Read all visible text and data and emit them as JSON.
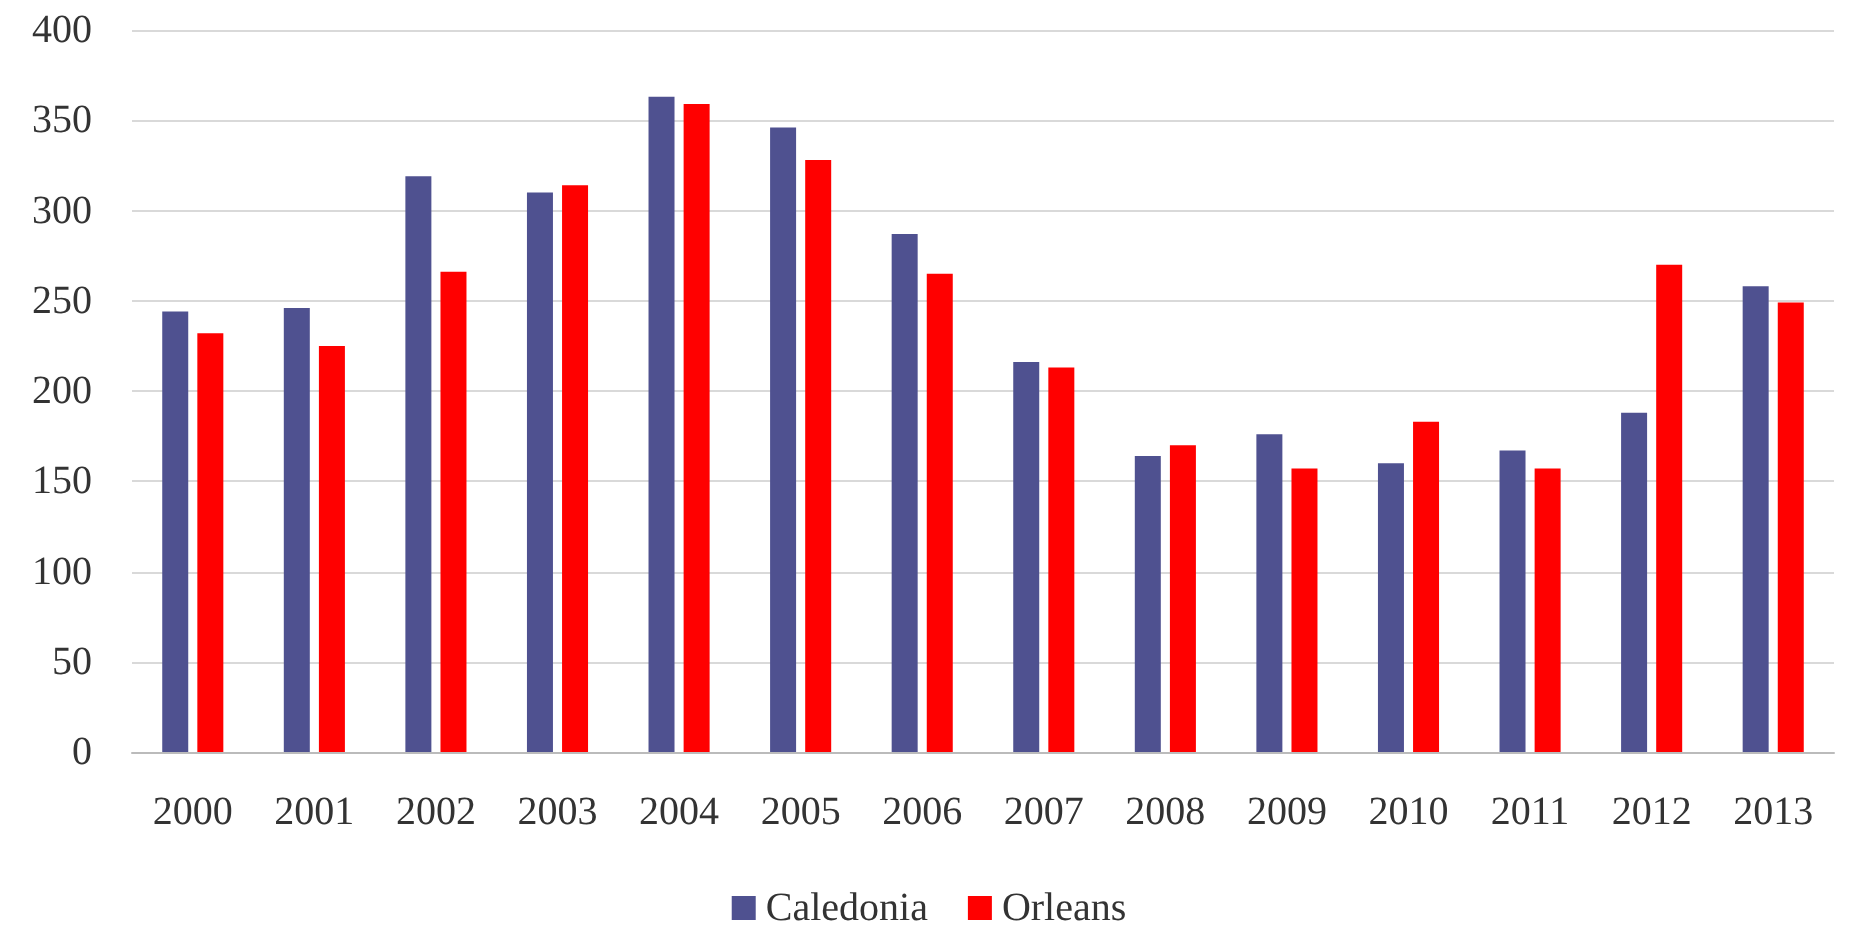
{
  "chart_data": {
    "type": "bar",
    "categories": [
      "2000",
      "2001",
      "2002",
      "2003",
      "2004",
      "2005",
      "2006",
      "2007",
      "2008",
      "2009",
      "2010",
      "2011",
      "2012",
      "2013"
    ],
    "series": [
      {
        "name": "Caledonia",
        "color": "#4f5190",
        "values": [
          244,
          246,
          319,
          310,
          363,
          346,
          287,
          216,
          164,
          176,
          160,
          167,
          188,
          258
        ]
      },
      {
        "name": "Orleans",
        "color": "#ff0000",
        "values": [
          232,
          225,
          266,
          314,
          359,
          328,
          265,
          213,
          170,
          157,
          183,
          157,
          270,
          249
        ]
      }
    ],
    "ylim": [
      0,
      400
    ],
    "yticks": [
      0,
      50,
      100,
      150,
      200,
      250,
      300,
      350,
      400
    ],
    "grid": "y",
    "legend": "bottom"
  }
}
